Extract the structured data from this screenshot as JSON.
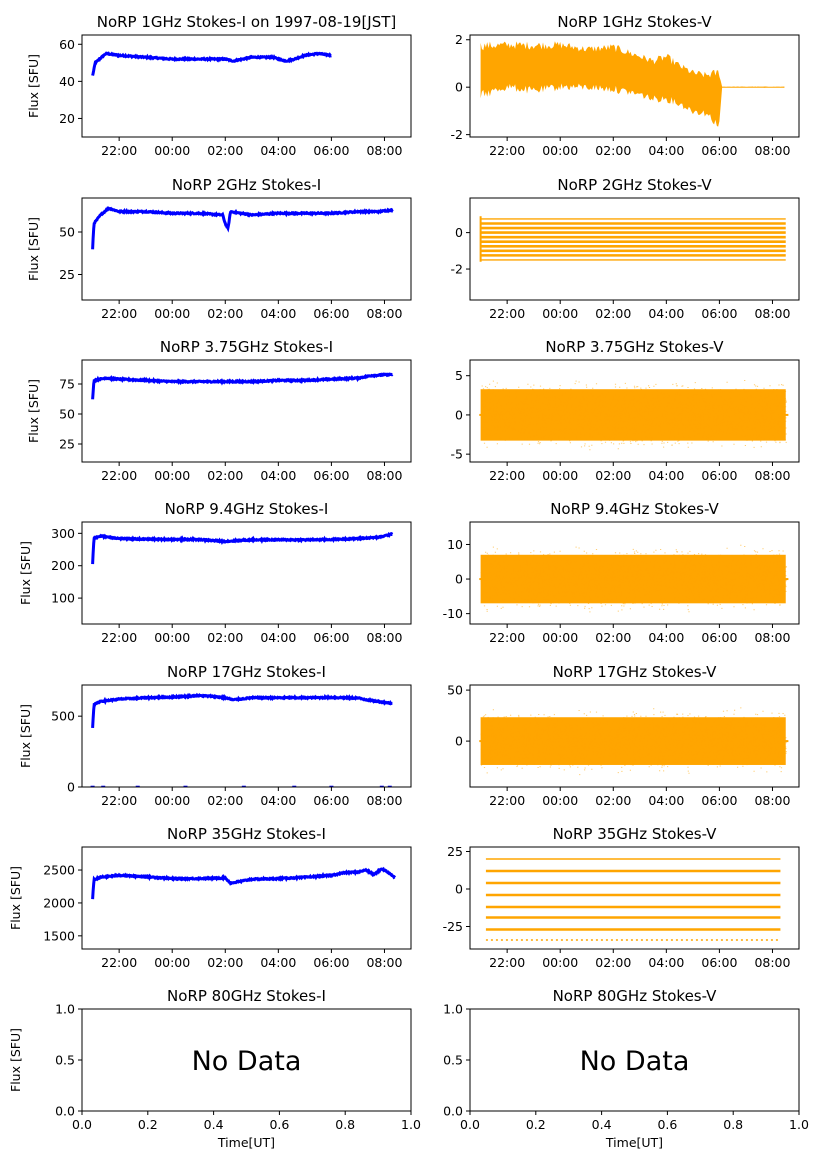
{
  "figure": {
    "time_ticks": [
      "22:00",
      "00:00",
      "02:00",
      "04:00",
      "06:00",
      "08:00"
    ],
    "colors": {
      "stokes_i": "#0000ff",
      "stokes_v": "#ffa500"
    }
  },
  "chart_data": [
    {
      "type": "line",
      "title": "NoRP 1GHz Stokes-I on 1997-08-19[JST]",
      "ylabel": "Flux [SFU]",
      "xlabel": "",
      "xlim": [
        20.6,
        33.0
      ],
      "ylim": [
        10,
        65
      ],
      "yticks": [
        20,
        40,
        60
      ],
      "xunit": "hours UT",
      "series": [
        {
          "color": "#0000ff",
          "x": [
            21.0,
            21.1,
            21.5,
            22.0,
            23.0,
            24.0,
            25.0,
            26.0,
            26.3,
            27.0,
            27.8,
            28.0,
            28.3,
            28.6,
            29.0,
            29.5,
            30.0
          ],
          "values": [
            43,
            50,
            55,
            54,
            53,
            52,
            52,
            52,
            51,
            53,
            53,
            52,
            51,
            52,
            54,
            55,
            54
          ]
        }
      ]
    },
    {
      "type": "scatter",
      "title": "NoRP 1GHz Stokes-V",
      "ylabel": "",
      "xlabel": "",
      "xlim": [
        20.6,
        33.0
      ],
      "ylim": [
        -2.1,
        2.2
      ],
      "yticks": [
        -2,
        0,
        2
      ],
      "xunit": "hours UT",
      "series": [
        {
          "color": "#ffa500",
          "x": [
            21.0,
            22.0,
            23.0,
            24.0,
            25.0,
            26.0,
            27.0,
            27.5,
            28.0,
            28.5,
            29.0,
            29.5,
            30.0,
            30.1,
            32.5
          ],
          "values": [
            0.7,
            0.9,
            0.8,
            0.9,
            0.8,
            0.8,
            0.5,
            0.3,
            0.4,
            0.1,
            -0.2,
            -0.3,
            -0.5,
            0.0,
            0.0
          ],
          "spread": [
            1.3,
            1.1,
            1.2,
            1.1,
            1.0,
            1.1,
            1.0,
            1.0,
            1.1,
            1.0,
            1.0,
            1.0,
            1.4,
            0.03,
            0.03
          ]
        }
      ]
    },
    {
      "type": "line",
      "title": "NoRP 2GHz Stokes-I",
      "ylabel": "Flux [SFU]",
      "xlabel": "",
      "xlim": [
        20.6,
        33.0
      ],
      "ylim": [
        10,
        70
      ],
      "yticks": [
        25,
        50
      ],
      "xunit": "hours UT",
      "series": [
        {
          "color": "#0000ff",
          "x": [
            21.0,
            21.05,
            21.3,
            21.6,
            22.0,
            23.0,
            24.0,
            25.0,
            25.9,
            26.0,
            26.1,
            26.2,
            27.0,
            28.0,
            29.0,
            30.0,
            31.0,
            31.8,
            32.3
          ],
          "values": [
            40,
            55,
            60,
            64,
            62,
            62,
            61,
            61,
            60,
            55,
            52,
            62,
            60,
            61,
            61,
            61,
            62,
            62,
            63
          ]
        }
      ]
    },
    {
      "type": "scatter",
      "title": "NoRP 2GHz Stokes-V",
      "ylabel": "",
      "xlabel": "",
      "xlim": [
        20.6,
        33.0
      ],
      "ylim": [
        -3.7,
        1.9
      ],
      "yticks": [
        -2,
        0
      ],
      "xunit": "hours UT",
      "series": [
        {
          "color": "#ffa500",
          "levels": [
            0.75,
            0.5,
            0.25,
            0.0,
            -0.25,
            -0.5,
            -0.75,
            -1.0,
            -1.25,
            -1.5
          ],
          "x_range": [
            21.0,
            32.5
          ]
        }
      ]
    },
    {
      "type": "scatter",
      "title": "NoRP 3.75GHz Stokes-I",
      "ylabel": "Flux [SFU]",
      "xlabel": "",
      "xlim": [
        20.6,
        33.0
      ],
      "ylim": [
        10,
        95
      ],
      "yticks": [
        25,
        50,
        75
      ],
      "xunit": "hours UT",
      "series": [
        {
          "color": "#0000ff",
          "x": [
            21.0,
            21.05,
            21.5,
            22.0,
            23.0,
            24.0,
            25.0,
            26.0,
            27.0,
            28.0,
            29.0,
            30.0,
            31.0,
            31.5,
            32.3
          ],
          "values": [
            62,
            78,
            80,
            79,
            78,
            77,
            77,
            77,
            77,
            78,
            78,
            79,
            80,
            82,
            83
          ]
        }
      ]
    },
    {
      "type": "scatter",
      "title": "NoRP 3.75GHz Stokes-V",
      "ylabel": "",
      "xlabel": "",
      "xlim": [
        20.6,
        33.0
      ],
      "ylim": [
        -6.0,
        7.0
      ],
      "yticks": [
        -5,
        0,
        5
      ],
      "xunit": "hours UT",
      "series": [
        {
          "color": "#ffa500",
          "x_range": [
            21.0,
            32.5
          ],
          "center": 0.0,
          "spread": 4.2
        }
      ]
    },
    {
      "type": "line",
      "title": "NoRP 9.4GHz Stokes-I",
      "ylabel": "Flux [SFU]",
      "xlabel": "",
      "xlim": [
        20.6,
        33.0
      ],
      "ylim": [
        20,
        335
      ],
      "yticks": [
        100,
        200,
        300
      ],
      "xunit": "hours UT",
      "series": [
        {
          "color": "#0000ff",
          "x": [
            21.0,
            21.05,
            21.3,
            22.0,
            23.0,
            24.0,
            25.0,
            26.0,
            27.0,
            28.0,
            29.0,
            30.0,
            31.0,
            31.8,
            32.3
          ],
          "values": [
            205,
            285,
            292,
            284,
            282,
            281,
            281,
            275,
            280,
            280,
            280,
            281,
            284,
            288,
            298
          ]
        }
      ]
    },
    {
      "type": "scatter",
      "title": "NoRP 9.4GHz Stokes-V",
      "ylabel": "",
      "xlabel": "",
      "xlim": [
        20.6,
        33.0
      ],
      "ylim": [
        -13.0,
        16.5
      ],
      "yticks": [
        -10,
        0,
        10
      ],
      "xunit": "hours UT",
      "series": [
        {
          "color": "#ffa500",
          "x_range": [
            21.0,
            32.5
          ],
          "center": 0.0,
          "spread": 9.0
        }
      ]
    },
    {
      "type": "line",
      "title": "NoRP 17GHz Stokes-I",
      "ylabel": "Flux [SFU]",
      "xlabel": "",
      "xlim": [
        20.6,
        33.0
      ],
      "ylim": [
        0,
        720
      ],
      "yticks": [
        0,
        500
      ],
      "xunit": "hours UT",
      "series": [
        {
          "color": "#0000ff",
          "x": [
            21.0,
            21.05,
            21.3,
            22.0,
            23.0,
            24.0,
            25.0,
            25.5,
            26.0,
            26.3,
            27.0,
            28.0,
            29.0,
            30.0,
            31.0,
            31.5,
            32.3
          ],
          "values": [
            420,
            580,
            605,
            620,
            630,
            635,
            645,
            640,
            630,
            615,
            630,
            630,
            630,
            632,
            628,
            610,
            590
          ]
        }
      ]
    },
    {
      "type": "scatter",
      "title": "NoRP 17GHz Stokes-V",
      "ylabel": "",
      "xlabel": "",
      "xlim": [
        20.6,
        33.0
      ],
      "ylim": [
        -45,
        55
      ],
      "yticks": [
        0,
        50
      ],
      "xunit": "hours UT",
      "series": [
        {
          "color": "#ffa500",
          "x_range": [
            21.0,
            32.5
          ],
          "center": 0.0,
          "spread": 30.0
        }
      ]
    },
    {
      "type": "line",
      "title": "NoRP 35GHz Stokes-I",
      "ylabel": "Flux [SFU]",
      "xlabel": "",
      "xlim": [
        20.6,
        33.0
      ],
      "ylim": [
        1300,
        2850
      ],
      "yticks": [
        1500,
        2000,
        2500
      ],
      "xunit": "hours UT",
      "series": [
        {
          "color": "#0000ff",
          "x": [
            21.0,
            21.05,
            21.3,
            22.0,
            23.0,
            24.0,
            25.0,
            26.0,
            26.2,
            27.0,
            28.0,
            29.0,
            30.0,
            30.5,
            31.0,
            31.3,
            31.6,
            31.9,
            32.2,
            32.4
          ],
          "values": [
            2050,
            2350,
            2390,
            2420,
            2400,
            2370,
            2370,
            2380,
            2300,
            2360,
            2370,
            2390,
            2420,
            2460,
            2470,
            2500,
            2430,
            2520,
            2450,
            2380
          ]
        }
      ]
    },
    {
      "type": "scatter",
      "title": "NoRP 35GHz Stokes-V",
      "ylabel": "",
      "xlabel": "",
      "xlim": [
        20.6,
        33.0
      ],
      "ylim": [
        -40,
        28
      ],
      "yticks": [
        -25,
        0,
        25
      ],
      "xunit": "hours UT",
      "series": [
        {
          "color": "#ffa500",
          "levels": [
            20,
            12,
            4,
            -4,
            -12,
            -19,
            -27,
            -34
          ],
          "x_range": [
            21.2,
            32.3
          ]
        }
      ]
    },
    {
      "type": "scatter",
      "title": "NoRP 80GHz Stokes-I",
      "ylabel": "Flux [SFU]",
      "xlabel": "Time[UT]",
      "xlim": [
        0.0,
        1.0
      ],
      "ylim": [
        0.0,
        1.0
      ],
      "xticks": [
        "0.0",
        "0.2",
        "0.4",
        "0.6",
        "0.8",
        "1.0"
      ],
      "yticks": [
        "0.0",
        "0.5",
        "1.0"
      ],
      "annotation": "No Data",
      "series": []
    },
    {
      "type": "scatter",
      "title": "NoRP 80GHz Stokes-V",
      "ylabel": "",
      "xlabel": "Time[UT]",
      "xlim": [
        0.0,
        1.0
      ],
      "ylim": [
        0.0,
        1.0
      ],
      "xticks": [
        "0.0",
        "0.2",
        "0.4",
        "0.6",
        "0.8",
        "1.0"
      ],
      "yticks": [
        "0.0",
        "0.5",
        "1.0"
      ],
      "annotation": "No Data",
      "series": []
    }
  ]
}
